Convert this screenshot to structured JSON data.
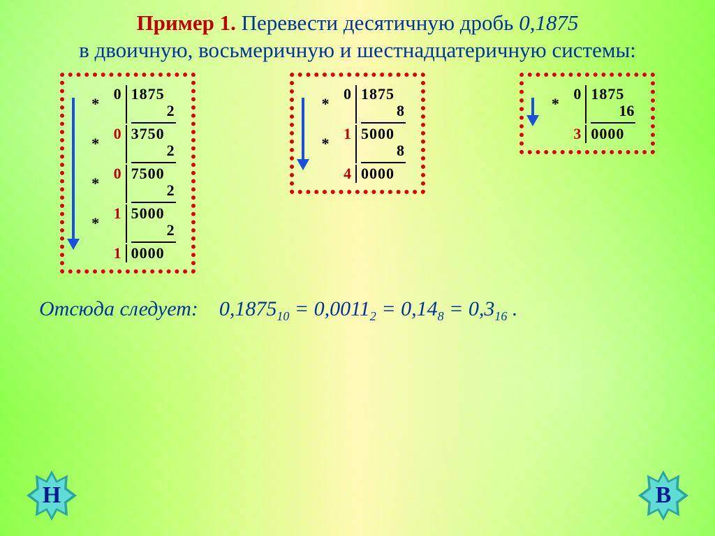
{
  "heading": {
    "example_label": "Пример 1.",
    "text_before": "Перевести десятичную дробь",
    "value": "0,1875",
    "text_after": "в двоичную, восьмеричную и шестнадцатеричную системы:"
  },
  "panels": [
    {
      "id": "binary",
      "arrow_color": "#1a4fe0",
      "steps": [
        {
          "int": "0",
          "int_red": false,
          "frac": "1875",
          "mult": "2"
        },
        {
          "int": "0",
          "int_red": true,
          "frac": "3750",
          "mult": "2"
        },
        {
          "int": "0",
          "int_red": true,
          "frac": "7500",
          "mult": "2"
        },
        {
          "int": "1",
          "int_red": true,
          "frac": "5000",
          "mult": "2"
        }
      ],
      "final": {
        "int": "1",
        "frac": "0000"
      }
    },
    {
      "id": "octal",
      "arrow_color": "#1a4fe0",
      "steps": [
        {
          "int": "0",
          "int_red": false,
          "frac": "1875",
          "mult": "8"
        },
        {
          "int": "1",
          "int_red": true,
          "frac": "5000",
          "mult": "8"
        }
      ],
      "final": {
        "int": "4",
        "frac": "0000"
      }
    },
    {
      "id": "hex",
      "arrow_color": "#1a4fe0",
      "steps": [
        {
          "int": "0",
          "int_red": false,
          "frac": "1875",
          "mult": "16"
        }
      ],
      "final": {
        "int": "3",
        "frac": "0000"
      }
    }
  ],
  "conclusion": {
    "lead": "Отсюда следует:",
    "parts": [
      {
        "text": "0,1875",
        "sub": "10"
      },
      {
        "text": "0,0011",
        "sub": "2"
      },
      {
        "text": "0,14",
        "sub": "8"
      },
      {
        "text": "0,3",
        "sub": "16"
      }
    ]
  },
  "nav": {
    "prev": "Н",
    "next": "В"
  },
  "colors": {
    "heading": "#003399",
    "example": "#c00000",
    "dot_border": "#e10000",
    "arrow": "#1a4fe0",
    "red_digit": "#c00000",
    "conclusion": "#003399",
    "star_outer": "#2da5a0",
    "star_inner": "#5fdcd6",
    "star_letter": "#001b8c"
  }
}
